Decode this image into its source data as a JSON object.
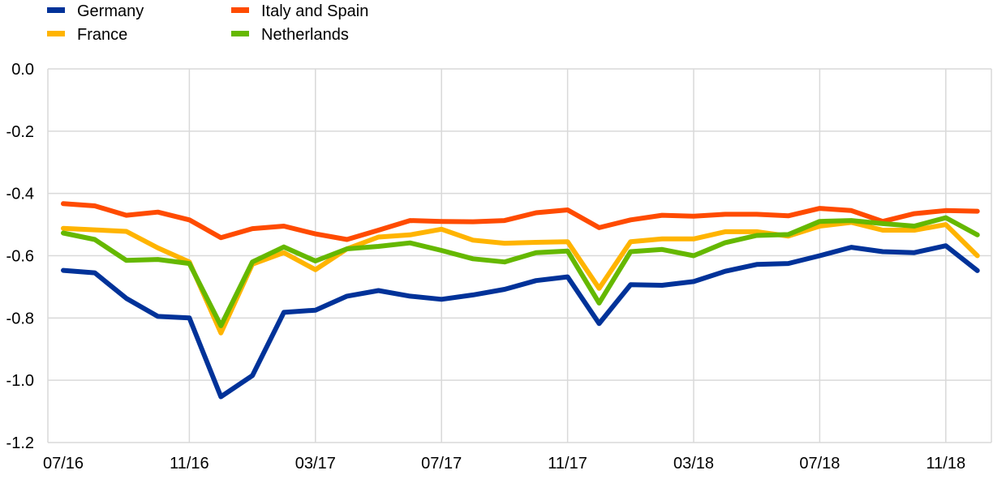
{
  "chart_data": {
    "type": "line",
    "ylim": [
      -1.2,
      0.0
    ],
    "yticks": [
      0.0,
      -0.2,
      -0.4,
      -0.6,
      -0.8,
      -1.0,
      -1.2
    ],
    "ytick_labels": [
      "0.0",
      "-0.2",
      "-0.4",
      "-0.6",
      "-0.8",
      "-1.0",
      "-1.2"
    ],
    "x": [
      "07/16",
      "08/16",
      "09/16",
      "10/16",
      "11/16",
      "12/16",
      "01/17",
      "02/17",
      "03/17",
      "04/17",
      "05/17",
      "06/17",
      "07/17",
      "08/17",
      "09/17",
      "10/17",
      "11/17",
      "12/17",
      "01/18",
      "02/18",
      "03/18",
      "04/18",
      "05/18",
      "06/18",
      "07/18",
      "08/18",
      "09/18",
      "10/18",
      "11/18",
      "12/18"
    ],
    "xtick_labels": [
      "07/16",
      "11/16",
      "03/17",
      "07/17",
      "11/17",
      "03/18",
      "07/18",
      "11/18"
    ],
    "grid": true,
    "legend_position": "top-left",
    "series": [
      {
        "name": "Germany",
        "color": "#003299",
        "values": [
          -0.647,
          -0.655,
          -0.737,
          -0.795,
          -0.8,
          -1.053,
          -0.985,
          -0.782,
          -0.775,
          -0.73,
          -0.712,
          -0.73,
          -0.74,
          -0.726,
          -0.708,
          -0.68,
          -0.668,
          -0.818,
          -0.693,
          -0.695,
          -0.683,
          -0.65,
          -0.628,
          -0.625,
          -0.6,
          -0.573,
          -0.587,
          -0.59,
          -0.568,
          -0.648
        ]
      },
      {
        "name": "France",
        "color": "#ffb400",
        "values": [
          -0.512,
          -0.517,
          -0.522,
          -0.575,
          -0.62,
          -0.848,
          -0.627,
          -0.59,
          -0.645,
          -0.578,
          -0.54,
          -0.533,
          -0.515,
          -0.55,
          -0.56,
          -0.557,
          -0.555,
          -0.705,
          -0.555,
          -0.546,
          -0.546,
          -0.523,
          -0.523,
          -0.537,
          -0.505,
          -0.493,
          -0.518,
          -0.518,
          -0.5,
          -0.6
        ]
      },
      {
        "name": "Italy and Spain",
        "color": "#ff4b00",
        "values": [
          -0.433,
          -0.44,
          -0.47,
          -0.46,
          -0.485,
          -0.542,
          -0.513,
          -0.505,
          -0.53,
          -0.548,
          -0.518,
          -0.487,
          -0.49,
          -0.491,
          -0.487,
          -0.462,
          -0.453,
          -0.51,
          -0.485,
          -0.47,
          -0.473,
          -0.467,
          -0.467,
          -0.472,
          -0.448,
          -0.455,
          -0.49,
          -0.465,
          -0.455,
          -0.457
        ]
      },
      {
        "name": "Netherlands",
        "color": "#65b800",
        "values": [
          -0.527,
          -0.548,
          -0.615,
          -0.612,
          -0.625,
          -0.825,
          -0.62,
          -0.572,
          -0.617,
          -0.578,
          -0.57,
          -0.559,
          -0.583,
          -0.61,
          -0.62,
          -0.59,
          -0.585,
          -0.752,
          -0.587,
          -0.58,
          -0.6,
          -0.558,
          -0.535,
          -0.532,
          -0.49,
          -0.487,
          -0.497,
          -0.505,
          -0.478,
          -0.533
        ]
      }
    ]
  }
}
